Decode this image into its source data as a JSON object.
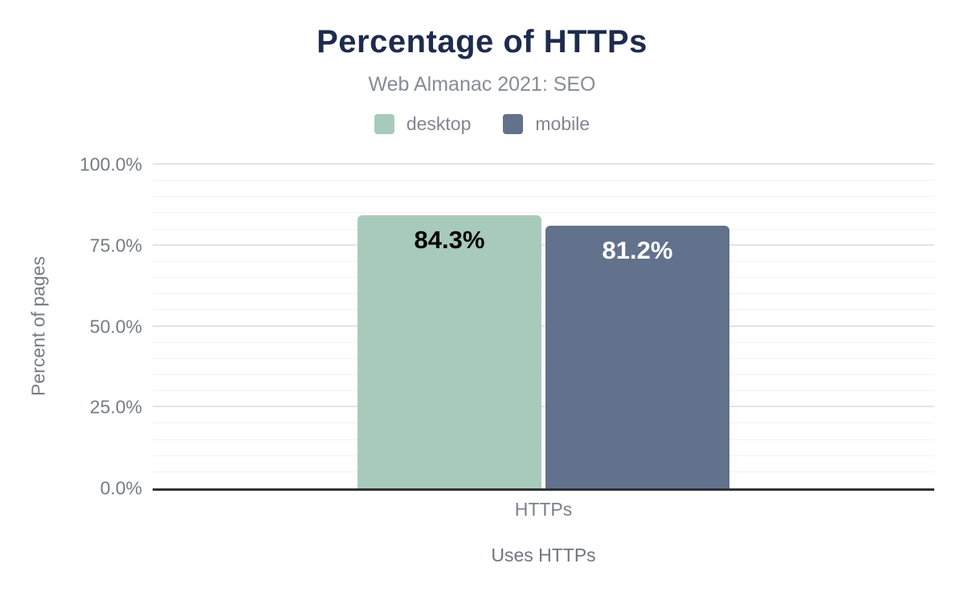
{
  "chart_data": {
    "type": "bar",
    "title": "Percentage of HTTPs",
    "subtitle": "Web Almanac 2021: SEO",
    "categories": [
      "HTTPs"
    ],
    "series": [
      {
        "name": "desktop",
        "values": [
          84.3
        ],
        "value_labels": [
          "84.3%"
        ],
        "color": "#a8cabb",
        "label_color": "#000000"
      },
      {
        "name": "mobile",
        "values": [
          81.2
        ],
        "value_labels": [
          "81.2%"
        ],
        "color": "#62718c",
        "label_color": "#ffffff"
      }
    ],
    "xlabel": "Uses HTTPs",
    "ylabel": "Percent of pages",
    "ylim": [
      0,
      100
    ],
    "y_ticks": [
      {
        "value": 0,
        "label": "0.0%"
      },
      {
        "value": 25,
        "label": "25.0%"
      },
      {
        "value": 50,
        "label": "50.0%"
      },
      {
        "value": 75,
        "label": "75.0%"
      },
      {
        "value": 100,
        "label": "100.0%"
      }
    ],
    "y_major_tick_step": 25,
    "y_minor_gridline_step": 5,
    "grid": "horizontal",
    "legend_position": "top"
  },
  "colors": {
    "title_text": "#1f2b4d",
    "subtitle_text": "#868c95",
    "axis_text": "#767b84",
    "axis_line": "#2f3237",
    "grid_major": "#e4e4e7",
    "grid_minor": "#f2f2f4",
    "background": "#ffffff"
  }
}
